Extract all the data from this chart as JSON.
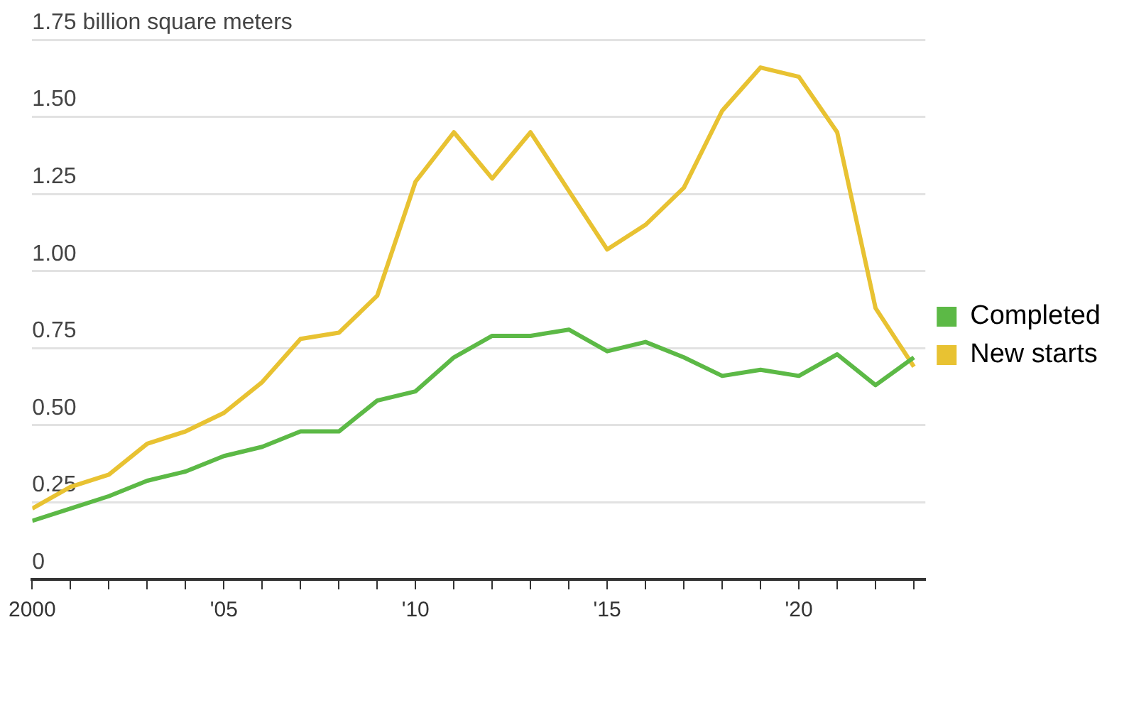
{
  "chart_data": {
    "type": "line",
    "x": [
      2000,
      2001,
      2002,
      2003,
      2004,
      2005,
      2006,
      2007,
      2008,
      2009,
      2010,
      2011,
      2012,
      2013,
      2014,
      2015,
      2016,
      2017,
      2018,
      2019,
      2020,
      2021,
      2022,
      2023
    ],
    "series": [
      {
        "name": "Completed",
        "color": "#5cb946",
        "values": [
          0.19,
          0.23,
          0.27,
          0.32,
          0.35,
          0.4,
          0.43,
          0.48,
          0.48,
          0.58,
          0.61,
          0.72,
          0.79,
          0.79,
          0.81,
          0.74,
          0.77,
          0.72,
          0.66,
          0.68,
          0.66,
          0.73,
          0.63,
          0.72
        ]
      },
      {
        "name": "New starts",
        "color": "#e8c232",
        "values": [
          0.23,
          0.3,
          0.34,
          0.44,
          0.48,
          0.54,
          0.64,
          0.78,
          0.8,
          0.92,
          1.29,
          1.45,
          1.3,
          1.45,
          1.26,
          1.07,
          1.15,
          1.27,
          1.52,
          1.66,
          1.63,
          1.45,
          0.88,
          0.69
        ]
      }
    ],
    "xlim": [
      2000,
      2023.3
    ],
    "xticks": [
      2000,
      {
        "value": 2001,
        "label": null
      },
      {
        "value": 2002,
        "label": null
      },
      {
        "value": 2003,
        "label": null
      },
      {
        "value": 2004,
        "label": null
      },
      {
        "value": 2005,
        "label": "'05"
      },
      {
        "value": 2006,
        "label": null
      },
      {
        "value": 2007,
        "label": null
      },
      {
        "value": 2008,
        "label": null
      },
      {
        "value": 2009,
        "label": null
      },
      {
        "value": 2010,
        "label": "'10"
      },
      {
        "value": 2011,
        "label": null
      },
      {
        "value": 2012,
        "label": null
      },
      {
        "value": 2013,
        "label": null
      },
      {
        "value": 2014,
        "label": null
      },
      {
        "value": 2015,
        "label": "'15"
      },
      {
        "value": 2016,
        "label": null
      },
      {
        "value": 2017,
        "label": null
      },
      {
        "value": 2018,
        "label": null
      },
      {
        "value": 2019,
        "label": null
      },
      {
        "value": 2020,
        "label": "'20"
      },
      {
        "value": 2021,
        "label": null
      },
      {
        "value": 2022,
        "label": null
      },
      {
        "value": 2023,
        "label": null
      }
    ],
    "ylim": [
      0,
      1.75
    ],
    "yticks": [
      0,
      {
        "value": 0.25,
        "label": "0.25"
      },
      {
        "value": 0.5,
        "label": "0.50"
      },
      {
        "value": 0.75,
        "label": "0.75"
      },
      {
        "value": 1,
        "label": "1.00"
      },
      {
        "value": 1.25,
        "label": "1.25"
      },
      {
        "value": 1.5,
        "label": "1.50"
      },
      {
        "value": 1.75,
        "label": "1.75 billion square meters"
      }
    ],
    "grid": "y",
    "legend": "right",
    "marker": "none",
    "line_style": "solid"
  }
}
